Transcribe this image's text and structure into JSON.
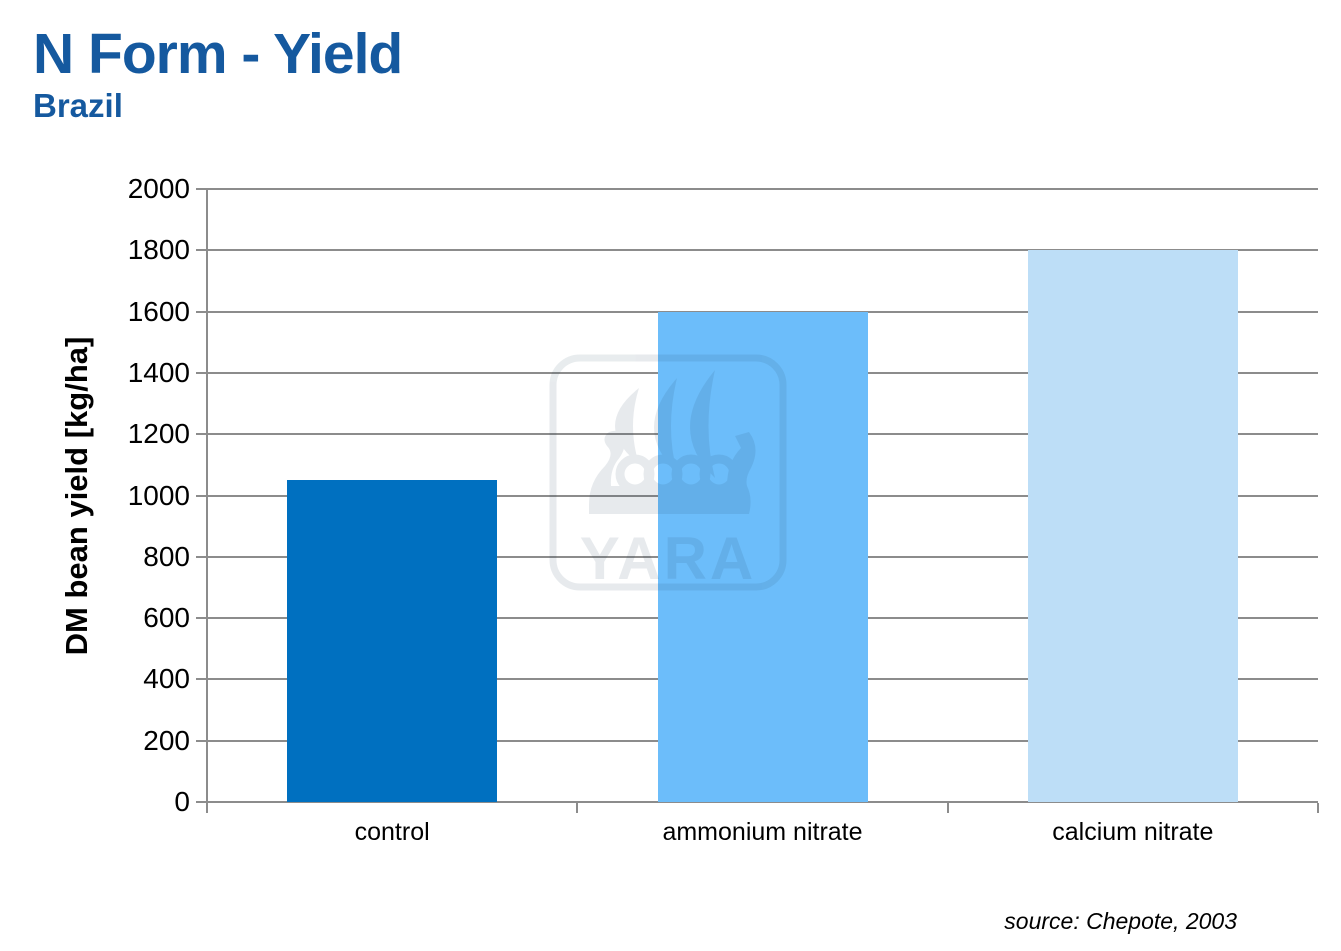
{
  "header": {
    "title": "N Form - Yield",
    "subtitle": "Brazil"
  },
  "colors": {
    "title_blue": "#15599F",
    "grid_gray": "#8C8C8C",
    "axis_gray": "#8C8C8C"
  },
  "watermark": {
    "icon": "yara-viking-ship-logo",
    "text": "YARA"
  },
  "source_note": "source: Chepote, 2003",
  "chart_data": {
    "type": "bar",
    "title": "N Form - Yield",
    "subtitle": "Brazil",
    "categories": [
      "control",
      "ammonium nitrate",
      "calcium nitrate"
    ],
    "values": [
      1050,
      1600,
      1800
    ],
    "bar_colors": [
      "#0070C0",
      "#6CBDFA",
      "#BDDEF7"
    ],
    "xlabel": "",
    "ylabel": "DM bean yield [kg/ha]",
    "ylim": [
      0,
      2000
    ],
    "ytick_step": 200,
    "grid": true,
    "legend": "none"
  }
}
